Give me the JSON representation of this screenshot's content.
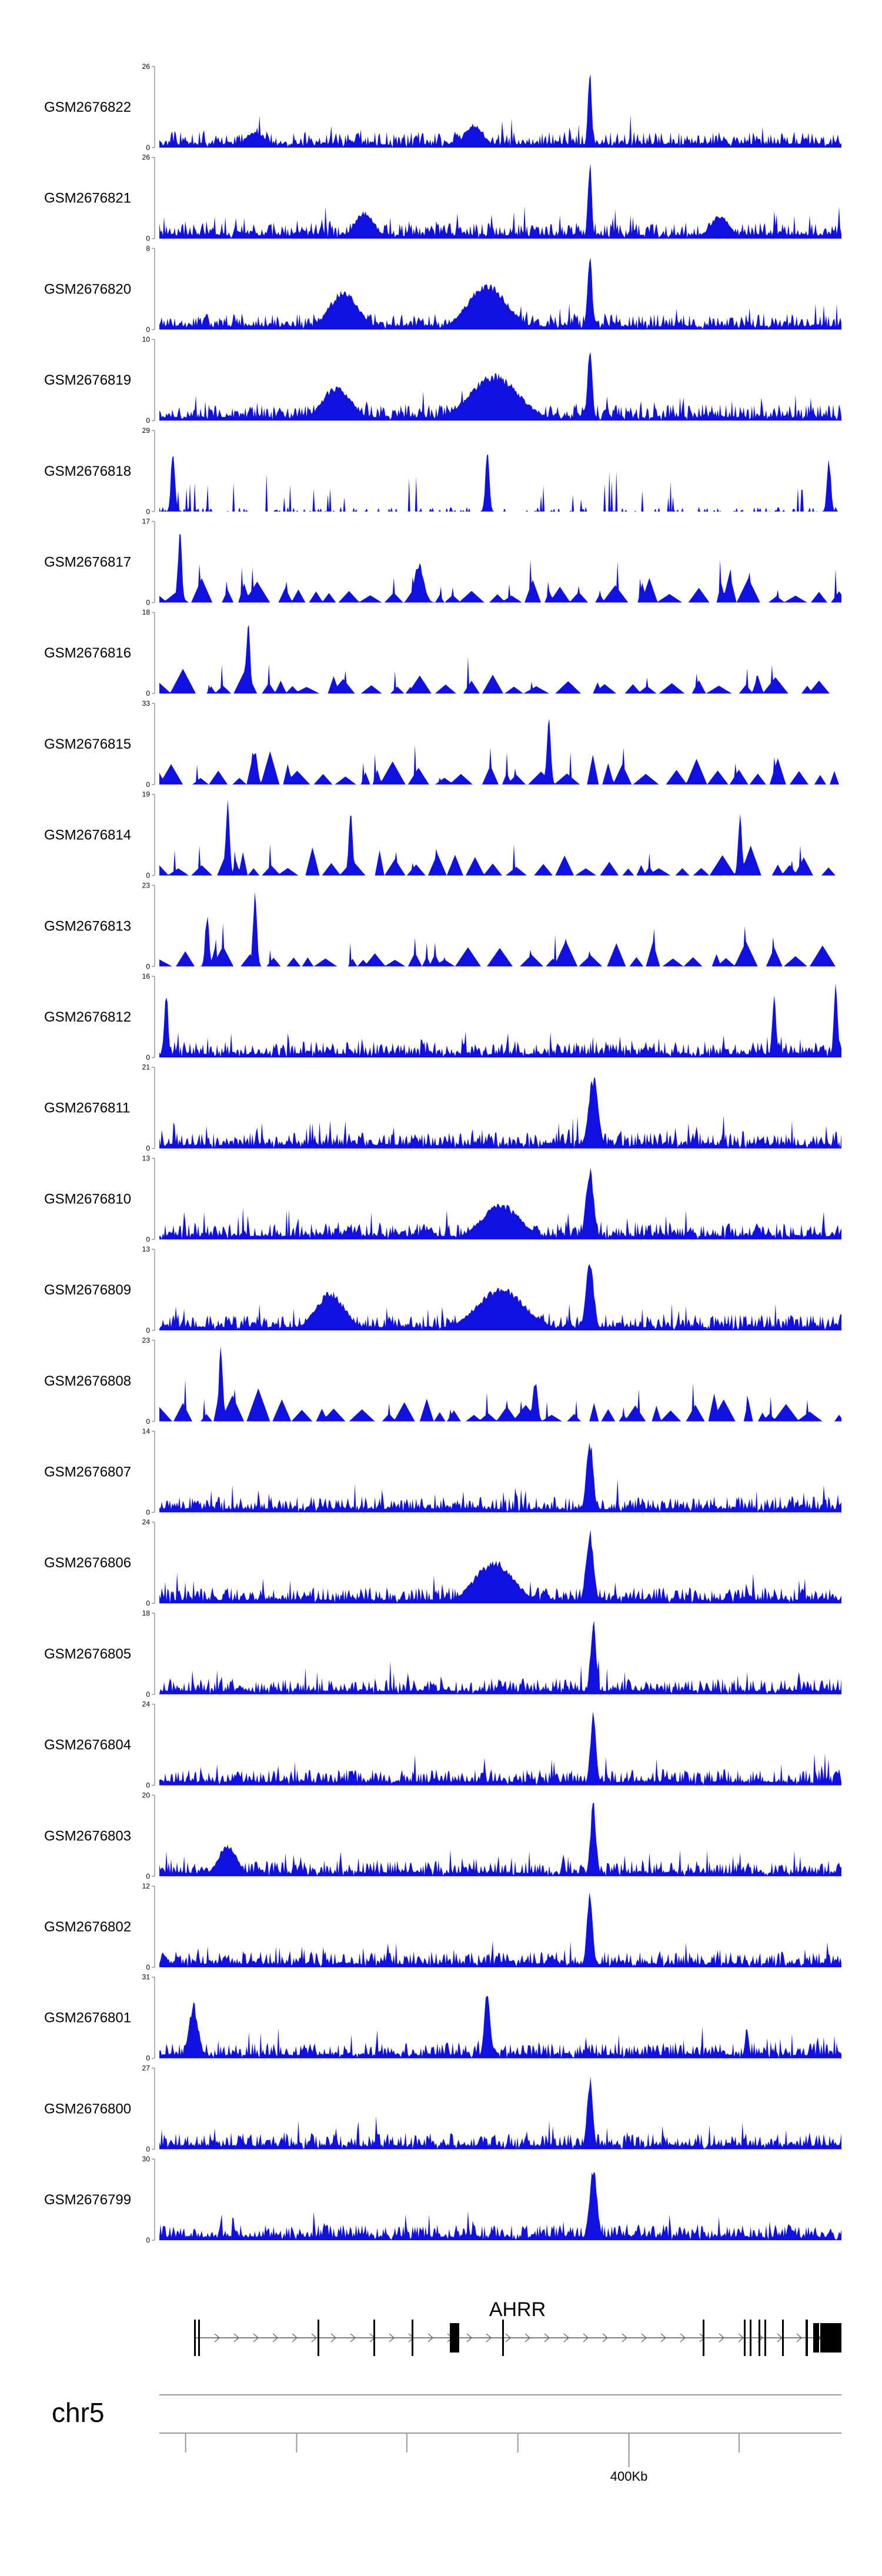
{
  "chart_data": {
    "type": "area",
    "title": "",
    "color": "#1010e0",
    "chromosome": "chr5",
    "gene": "AHRR",
    "x_range_kb": [
      300,
      1080
    ],
    "x_tick_kb": [
      330,
      457,
      583,
      710,
      837,
      963
    ],
    "labeled_tick": {
      "kb": 837,
      "label": "400Kb"
    },
    "tracks": [
      {
        "name": "GSM2676822",
        "ymax": "26",
        "ymin": "0",
        "style": "dense",
        "seed": 22,
        "peaks": [
          {
            "x": 0.63,
            "h": 1.0,
            "w": 0.004
          },
          {
            "x": 0.46,
            "h": 0.3,
            "w": 0.02
          },
          {
            "x": 0.14,
            "h": 0.2,
            "w": 0.02
          }
        ]
      },
      {
        "name": "GSM2676821",
        "ymax": "26",
        "ymin": "0",
        "style": "dense",
        "seed": 21,
        "peaks": [
          {
            "x": 0.63,
            "h": 1.0,
            "w": 0.004
          },
          {
            "x": 0.3,
            "h": 0.35,
            "w": 0.02
          },
          {
            "x": 0.82,
            "h": 0.3,
            "w": 0.02
          }
        ]
      },
      {
        "name": "GSM2676820",
        "ymax": "8",
        "ymin": "0",
        "style": "dense",
        "seed": 20,
        "peaks": [
          {
            "x": 0.63,
            "h": 0.95,
            "w": 0.005
          },
          {
            "x": 0.48,
            "h": 0.6,
            "w": 0.04
          },
          {
            "x": 0.27,
            "h": 0.5,
            "w": 0.03
          }
        ]
      },
      {
        "name": "GSM2676819",
        "ymax": "10",
        "ymin": "0",
        "style": "dense",
        "seed": 19,
        "peaks": [
          {
            "x": 0.63,
            "h": 0.95,
            "w": 0.005
          },
          {
            "x": 0.49,
            "h": 0.6,
            "w": 0.05
          },
          {
            "x": 0.26,
            "h": 0.45,
            "w": 0.03
          }
        ]
      },
      {
        "name": "GSM2676818",
        "ymax": "29",
        "ymin": "0",
        "style": "sparse",
        "seed": 18,
        "peaks": [
          {
            "x": 0.02,
            "h": 0.85,
            "w": 0.004
          },
          {
            "x": 0.48,
            "h": 0.8,
            "w": 0.004
          },
          {
            "x": 0.98,
            "h": 0.7,
            "w": 0.004
          }
        ]
      },
      {
        "name": "GSM2676817",
        "ymax": "17",
        "ymin": "0",
        "style": "spiky",
        "seed": 17,
        "peaks": [
          {
            "x": 0.03,
            "h": 0.95,
            "w": 0.004
          },
          {
            "x": 0.38,
            "h": 0.5,
            "w": 0.01
          }
        ]
      },
      {
        "name": "GSM2676816",
        "ymax": "18",
        "ymin": "0",
        "style": "spiky",
        "seed": 16,
        "peaks": [
          {
            "x": 0.13,
            "h": 0.95,
            "w": 0.004
          }
        ]
      },
      {
        "name": "GSM2676815",
        "ymax": "33",
        "ymin": "0",
        "style": "spiky",
        "seed": 15,
        "peaks": [
          {
            "x": 0.57,
            "h": 0.95,
            "w": 0.004
          },
          {
            "x": 0.14,
            "h": 0.45,
            "w": 0.005
          }
        ]
      },
      {
        "name": "GSM2676814",
        "ymax": "19",
        "ymin": "0",
        "style": "spiky",
        "seed": 14,
        "peaks": [
          {
            "x": 0.1,
            "h": 0.95,
            "w": 0.004
          },
          {
            "x": 0.28,
            "h": 0.8,
            "w": 0.004
          },
          {
            "x": 0.85,
            "h": 0.8,
            "w": 0.004
          }
        ]
      },
      {
        "name": "GSM2676813",
        "ymax": "23",
        "ymin": "0",
        "style": "spiky",
        "seed": 13,
        "peaks": [
          {
            "x": 0.14,
            "h": 0.95,
            "w": 0.004
          },
          {
            "x": 0.07,
            "h": 0.7,
            "w": 0.004
          }
        ]
      },
      {
        "name": "GSM2676812",
        "ymax": "16",
        "ymin": "0",
        "style": "dense",
        "seed": 12,
        "peaks": [
          {
            "x": 0.01,
            "h": 0.9,
            "w": 0.004
          },
          {
            "x": 0.99,
            "h": 0.95,
            "w": 0.004
          },
          {
            "x": 0.9,
            "h": 0.85,
            "w": 0.004
          }
        ]
      },
      {
        "name": "GSM2676811",
        "ymax": "21",
        "ymin": "0",
        "style": "dense",
        "seed": 11,
        "peaks": [
          {
            "x": 0.635,
            "h": 0.95,
            "w": 0.01
          }
        ]
      },
      {
        "name": "GSM2676810",
        "ymax": "13",
        "ymin": "0",
        "style": "dense",
        "seed": 10,
        "peaks": [
          {
            "x": 0.63,
            "h": 0.95,
            "w": 0.008
          },
          {
            "x": 0.5,
            "h": 0.45,
            "w": 0.04
          }
        ]
      },
      {
        "name": "GSM2676809",
        "ymax": "13",
        "ymin": "0",
        "style": "dense",
        "seed": 9,
        "peaks": [
          {
            "x": 0.63,
            "h": 0.95,
            "w": 0.008
          },
          {
            "x": 0.5,
            "h": 0.55,
            "w": 0.05
          },
          {
            "x": 0.25,
            "h": 0.5,
            "w": 0.03
          }
        ]
      },
      {
        "name": "GSM2676808",
        "ymax": "23",
        "ymin": "0",
        "style": "spiky",
        "seed": 8,
        "peaks": [
          {
            "x": 0.09,
            "h": 0.95,
            "w": 0.004
          },
          {
            "x": 0.55,
            "h": 0.55,
            "w": 0.005
          }
        ]
      },
      {
        "name": "GSM2676807",
        "ymax": "14",
        "ymin": "0",
        "style": "dense",
        "seed": 7,
        "peaks": [
          {
            "x": 0.63,
            "h": 0.95,
            "w": 0.007
          }
        ]
      },
      {
        "name": "GSM2676806",
        "ymax": "24",
        "ymin": "0",
        "style": "dense",
        "seed": 6,
        "peaks": [
          {
            "x": 0.63,
            "h": 0.95,
            "w": 0.008
          },
          {
            "x": 0.49,
            "h": 0.55,
            "w": 0.04
          }
        ]
      },
      {
        "name": "GSM2676805",
        "ymax": "18",
        "ymin": "0",
        "style": "dense",
        "seed": 5,
        "peaks": [
          {
            "x": 0.635,
            "h": 0.95,
            "w": 0.006
          }
        ]
      },
      {
        "name": "GSM2676804",
        "ymax": "24",
        "ymin": "0",
        "style": "dense",
        "seed": 4,
        "peaks": [
          {
            "x": 0.635,
            "h": 0.95,
            "w": 0.006
          }
        ]
      },
      {
        "name": "GSM2676803",
        "ymax": "20",
        "ymin": "0",
        "style": "dense",
        "seed": 3,
        "peaks": [
          {
            "x": 0.635,
            "h": 0.95,
            "w": 0.006
          },
          {
            "x": 0.1,
            "h": 0.4,
            "w": 0.02
          }
        ]
      },
      {
        "name": "GSM2676802",
        "ymax": "12",
        "ymin": "0",
        "style": "dense",
        "seed": 2,
        "peaks": [
          {
            "x": 0.63,
            "h": 0.95,
            "w": 0.006
          }
        ]
      },
      {
        "name": "GSM2676801",
        "ymax": "31",
        "ymin": "0",
        "style": "dense",
        "seed": 1,
        "peaks": [
          {
            "x": 0.48,
            "h": 0.95,
            "w": 0.006
          },
          {
            "x": 0.05,
            "h": 0.7,
            "w": 0.01
          },
          {
            "x": 0.86,
            "h": 0.4,
            "w": 0.004
          }
        ]
      },
      {
        "name": "GSM2676800",
        "ymax": "27",
        "ymin": "0",
        "style": "dense",
        "seed": 30,
        "peaks": [
          {
            "x": 0.63,
            "h": 0.95,
            "w": 0.006
          }
        ]
      },
      {
        "name": "GSM2676799",
        "ymax": "30",
        "ymin": "0",
        "style": "dense",
        "seed": 31,
        "peaks": [
          {
            "x": 0.635,
            "h": 0.95,
            "w": 0.008
          }
        ]
      }
    ]
  }
}
